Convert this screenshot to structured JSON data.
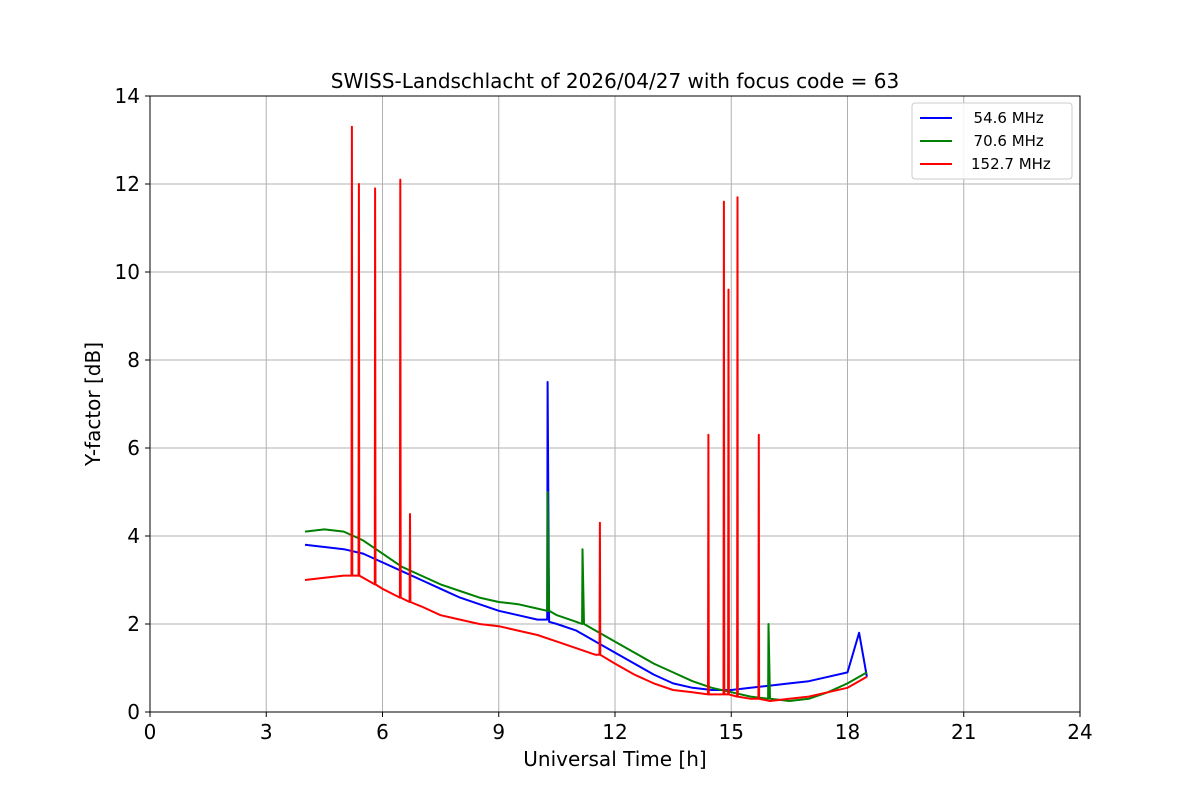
{
  "chart_data": {
    "type": "line",
    "title": "SWISS-Landschlacht of 2026/04/27 with focus code = 63",
    "xlabel": "Universal Time [h]",
    "ylabel": "Y-factor [dB]",
    "xlim": [
      0,
      24
    ],
    "ylim": [
      0,
      14
    ],
    "xticks": [
      "0",
      "3",
      "6",
      "9",
      "12",
      "15",
      "18",
      "21",
      "24"
    ],
    "yticks": [
      "0",
      "2",
      "4",
      "6",
      "8",
      "10",
      "12",
      "14"
    ],
    "grid": true,
    "legend_position": "top-right",
    "series": [
      {
        "name": "  54.6 MHz",
        "color": "#0000ff",
        "x": [
          4.0,
          4.5,
          5.0,
          5.5,
          6.0,
          6.5,
          7.0,
          7.5,
          8.0,
          8.5,
          9.0,
          9.5,
          10.0,
          10.25,
          10.26,
          10.3,
          10.5,
          11.0,
          11.5,
          12.0,
          12.5,
          13.0,
          13.5,
          14.0,
          14.5,
          15.0,
          15.5,
          16.0,
          16.5,
          17.0,
          17.5,
          18.0,
          18.3,
          18.5
        ],
        "y": [
          3.8,
          3.75,
          3.7,
          3.6,
          3.4,
          3.2,
          3.0,
          2.8,
          2.6,
          2.45,
          2.3,
          2.2,
          2.1,
          2.1,
          7.5,
          2.05,
          2.0,
          1.85,
          1.6,
          1.35,
          1.1,
          0.85,
          0.65,
          0.55,
          0.5,
          0.5,
          0.55,
          0.6,
          0.65,
          0.7,
          0.8,
          0.9,
          1.8,
          0.8
        ]
      },
      {
        "name": "  70.6 MHz",
        "color": "#008000",
        "x": [
          4.0,
          4.5,
          5.0,
          5.5,
          6.0,
          6.5,
          7.0,
          7.5,
          8.0,
          8.5,
          9.0,
          9.5,
          10.0,
          10.25,
          10.26,
          10.3,
          10.5,
          11.0,
          11.15,
          11.16,
          11.2,
          11.5,
          12.0,
          12.5,
          13.0,
          13.5,
          14.0,
          14.5,
          15.0,
          15.5,
          15.95,
          15.96,
          16.0,
          16.5,
          17.0,
          17.5,
          18.0,
          18.5
        ],
        "y": [
          4.1,
          4.15,
          4.1,
          3.9,
          3.6,
          3.3,
          3.1,
          2.9,
          2.75,
          2.6,
          2.5,
          2.45,
          2.35,
          2.3,
          5.0,
          2.3,
          2.2,
          2.05,
          2.0,
          3.7,
          2.0,
          1.85,
          1.6,
          1.35,
          1.1,
          0.9,
          0.7,
          0.55,
          0.45,
          0.35,
          0.3,
          2.0,
          0.3,
          0.25,
          0.3,
          0.45,
          0.65,
          0.9
        ]
      },
      {
        "name": "152.7 MHz",
        "color": "#ff0000",
        "x": [
          4.0,
          4.5,
          5.0,
          5.2,
          5.21,
          5.22,
          5.38,
          5.39,
          5.4,
          5.5,
          5.8,
          5.81,
          5.82,
          6.0,
          6.45,
          6.46,
          6.47,
          6.7,
          6.71,
          6.72,
          7.0,
          7.5,
          8.0,
          8.5,
          9.0,
          9.5,
          10.0,
          10.5,
          11.0,
          11.5,
          11.6,
          11.61,
          11.62,
          12.0,
          12.5,
          13.0,
          13.5,
          14.0,
          14.4,
          14.41,
          14.42,
          14.8,
          14.81,
          14.82,
          14.92,
          14.93,
          14.94,
          15.15,
          15.16,
          15.17,
          15.5,
          15.7,
          15.71,
          15.72,
          16.0,
          16.5,
          17.0,
          17.5,
          18.0,
          18.5
        ],
        "y": [
          3.0,
          3.05,
          3.1,
          3.1,
          13.3,
          3.1,
          3.1,
          12.0,
          3.1,
          3.05,
          2.9,
          11.9,
          2.9,
          2.8,
          2.6,
          12.1,
          2.6,
          2.5,
          4.5,
          2.5,
          2.4,
          2.2,
          2.1,
          2.0,
          1.95,
          1.85,
          1.75,
          1.6,
          1.45,
          1.3,
          1.3,
          4.3,
          1.3,
          1.1,
          0.85,
          0.65,
          0.5,
          0.45,
          0.4,
          6.3,
          0.4,
          0.4,
          11.6,
          0.4,
          0.4,
          9.6,
          0.4,
          0.35,
          11.7,
          0.35,
          0.3,
          0.3,
          6.3,
          0.3,
          0.25,
          0.3,
          0.35,
          0.45,
          0.55,
          0.8
        ]
      }
    ]
  }
}
